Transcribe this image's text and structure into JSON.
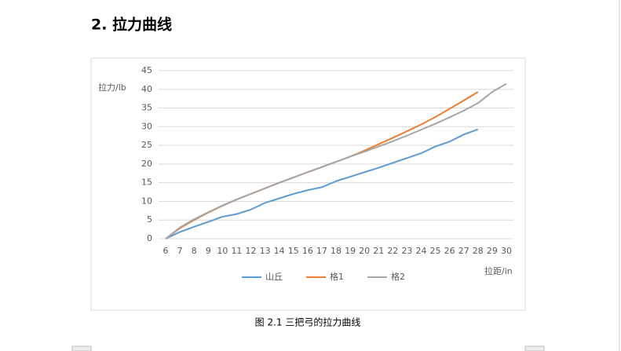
{
  "heading": "2.  拉力曲线",
  "chart_data": {
    "type": "line",
    "y_label": "拉力/lb",
    "x_label": "拉距/in",
    "x": [
      6,
      7,
      8,
      9,
      10,
      11,
      12,
      13,
      14,
      15,
      16,
      17,
      18,
      19,
      20,
      21,
      22,
      23,
      24,
      25,
      26,
      27,
      28,
      29,
      30
    ],
    "xlim": [
      5.5,
      30.5
    ],
    "xticks": [
      6,
      7,
      8,
      9,
      10,
      11,
      12,
      13,
      14,
      15,
      16,
      17,
      18,
      19,
      20,
      21,
      22,
      23,
      24,
      25,
      26,
      27,
      28,
      29,
      30
    ],
    "ylim": [
      0,
      45
    ],
    "yticks": [
      0,
      5,
      10,
      15,
      20,
      25,
      30,
      35,
      40,
      45
    ],
    "grid": true,
    "legend": "bottom",
    "series": [
      {
        "name": "山丘",
        "color": "#5b9bd5",
        "values": [
          0,
          1.8,
          3.2,
          4.5,
          5.9,
          6.6,
          7.8,
          9.6,
          10.8,
          12.0,
          13.0,
          13.8,
          15.4,
          16.6,
          17.8,
          19.0,
          20.3,
          21.6,
          22.9,
          24.7,
          26.0,
          27.9,
          29.3,
          null,
          null
        ]
      },
      {
        "name": "格1",
        "color": "#ed7d31",
        "values": [
          0,
          2.8,
          5.0,
          7.0,
          8.8,
          10.5,
          12.0,
          13.5,
          15.0,
          16.4,
          17.8,
          19.2,
          20.6,
          22.0,
          23.6,
          25.3,
          27.0,
          28.8,
          30.6,
          32.6,
          34.8,
          37.0,
          39.3,
          null,
          null
        ]
      },
      {
        "name": "格2",
        "color": "#a5a5a5",
        "values": [
          0,
          3.0,
          5.2,
          7.1,
          8.9,
          10.5,
          12.0,
          13.5,
          15.0,
          16.4,
          17.8,
          19.2,
          20.6,
          22.0,
          23.3,
          24.7,
          26.1,
          27.6,
          29.2,
          30.8,
          32.5,
          34.3,
          36.3,
          39.3,
          41.5
        ]
      }
    ]
  },
  "caption": "图 2.1 三把弓的拉力曲线"
}
